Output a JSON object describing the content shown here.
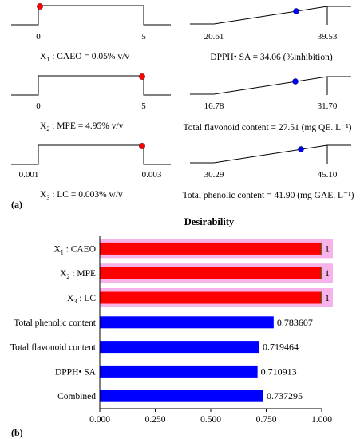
{
  "panel_a": {
    "label": "(a)",
    "factors": [
      {
        "sub": "1",
        "text": " : CAEO = 0.05% v/v",
        "low": "0",
        "high": "5"
      },
      {
        "sub": "2",
        "text": " : MPE = 4.95% v/v",
        "low": "0",
        "high": "5"
      },
      {
        "sub": "3",
        "text": " : LC = 0.003% w/v",
        "low": "0.001",
        "high": "0.003"
      }
    ],
    "responses": [
      {
        "caption": "DPPH• SA = 34.06 (%inhibition)",
        "low": "20.61",
        "high": "39.53"
      },
      {
        "caption": "Total flavonoid content = 27.51 (mg QE. L⁻¹)",
        "low": "16.78",
        "high": "31.70"
      },
      {
        "caption": "Total phenolic content = 41.90 (mg GAE. L⁻¹)",
        "low": "30.29",
        "high": "45.10"
      }
    ]
  },
  "panel_b": {
    "label": "(b)"
  },
  "colors": {
    "factor": "#ff0000",
    "response": "#0000ff",
    "highlight": "#f6b3ea"
  },
  "chart_data": {
    "type": "bar",
    "orientation": "horizontal",
    "title": "Desirability",
    "categories": [
      "X1 : CAEO",
      "X2 : MPE",
      "X3 : LC",
      "Total phenolic content",
      "Total flavonoid content",
      "DPPH• SA",
      "Combined"
    ],
    "category_parts": [
      {
        "base": "X",
        "sub": "1",
        "rest": " : CAEO"
      },
      {
        "base": "X",
        "sub": "2",
        "rest": " : MPE"
      },
      {
        "base": "X",
        "sub": "3",
        "rest": " : LC"
      },
      {
        "base": "Total phenolic content",
        "sub": "",
        "rest": ""
      },
      {
        "base": "Total flavonoid content",
        "sub": "",
        "rest": ""
      },
      {
        "base": "DPPH• SA",
        "sub": "",
        "rest": ""
      },
      {
        "base": "Combined",
        "sub": "",
        "rest": ""
      }
    ],
    "values": [
      1,
      1,
      1,
      0.783607,
      0.719464,
      0.710913,
      0.737295
    ],
    "value_labels": [
      "1",
      "1",
      "1",
      "0.783607",
      "0.719464",
      "0.710913",
      "0.737295"
    ],
    "bar_colors": [
      "#ff0000",
      "#ff0000",
      "#ff0000",
      "#0000ff",
      "#0000ff",
      "#0000ff",
      "#0000ff"
    ],
    "xlim": [
      0,
      1
    ],
    "xticks": [
      "0.000",
      "0.250",
      "0.500",
      "0.750",
      "1.000"
    ],
    "grid": false,
    "legend": "none"
  }
}
